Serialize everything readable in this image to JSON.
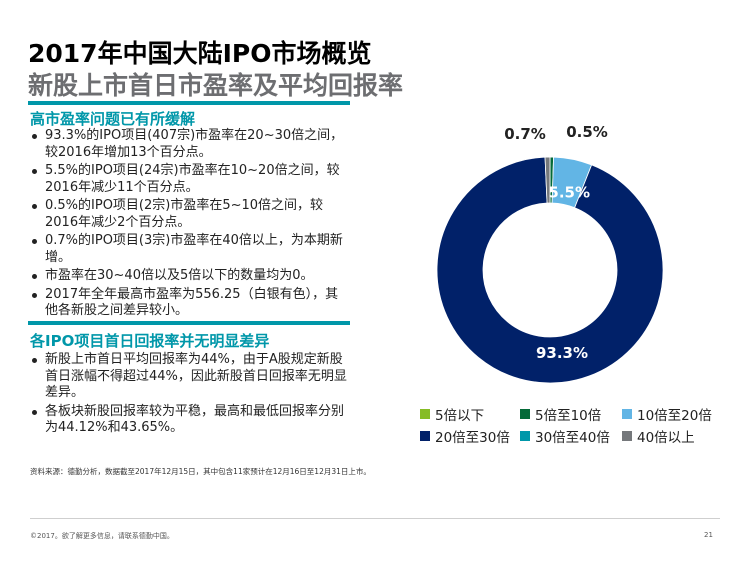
{
  "title": "2017年中国大陆IPO市场概览",
  "subtitle": "新股上市首日市盈率及平均回报率",
  "sections": [
    {
      "heading": "高市盈率问题已有所缓解",
      "bullets": [
        "93.3%的IPO项目(407宗)市盈率在20~30倍之间，较2016年增加13个百分点。",
        "5.5%的IPO项目(24宗)市盈率在10~20倍之间，较2016年减少11个百分点。",
        "0.5%的IPO项目(2宗)市盈率在5~10倍之间，较2016年减少2个百分点。",
        "0.7%的IPO项目(3宗)市盈率在40倍以上，为本期新增。",
        "市盈率在30~40倍以及5倍以下的数量均为0。",
        "2017年全年最高市盈率为556.25（白银有色），其他各新股之间差异较小。"
      ]
    },
    {
      "heading": "各IPO项目首日回报率并无明显差异",
      "bullets": [
        "新股上市首日平均回报率为44%，由于A股规定新股首日涨幅不得超过44%，因此新股首日回报率无明显差异。",
        "各板块新股回报率较为平稳，最高和最低回报率分别为44.12%和43.65%。"
      ]
    }
  ],
  "chart_data": {
    "type": "pie",
    "donut": true,
    "legend_position": "bottom",
    "categories": [
      "5倍以下",
      "5倍至10倍",
      "10倍至20倍",
      "20倍至30倍",
      "30倍至40倍",
      "40倍以上"
    ],
    "values": [
      0,
      0.5,
      5.5,
      93.3,
      0,
      0.7
    ],
    "colors": [
      "#86bc25",
      "#046a38",
      "#62b5e5",
      "#012169",
      "#0097a9",
      "#75787b"
    ],
    "data_labels": [
      "",
      "0.5%",
      "5.5%",
      "93.3%",
      "",
      "0.7%"
    ]
  },
  "source_note": "资料来源：德勤分析，数据截至2017年12月15日，其中包含11家预计在12月16日至12月31日上市。",
  "copyright": "©2017。欲了解更多信息，请联系德勤中国。",
  "page_number": "21"
}
